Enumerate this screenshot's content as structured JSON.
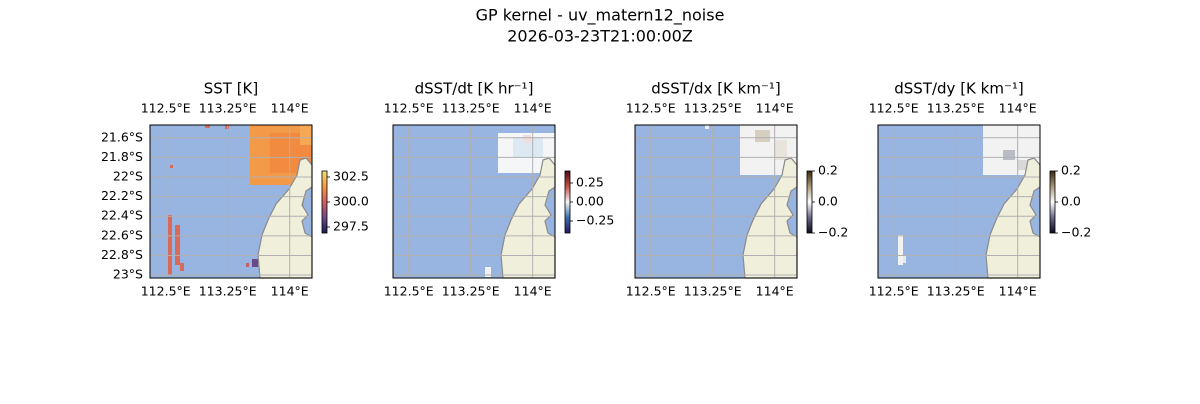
{
  "figure": {
    "title": "GP kernel - uv_matern12_noise",
    "subtitle": "2026-03-23T21:00:00Z",
    "lon_range": [
      112.31,
      114.27
    ],
    "lat_range": [
      -21.47,
      -23.03
    ],
    "lon_ticks": [
      {
        "value": 112.5,
        "label": "112.5°E"
      },
      {
        "value": 113.25,
        "label": "113.25°E"
      },
      {
        "value": 114,
        "label": "114°E"
      }
    ],
    "lat_ticks": [
      {
        "value": -21.6,
        "label": "21.6°S"
      },
      {
        "value": -21.8,
        "label": "21.8°S"
      },
      {
        "value": -22,
        "label": "22°S"
      },
      {
        "value": -22.2,
        "label": "22.2°S"
      },
      {
        "value": -22.4,
        "label": "22.4°S"
      },
      {
        "value": -22.6,
        "label": "22.6°S"
      },
      {
        "value": -22.8,
        "label": "22.8°S"
      },
      {
        "value": -23,
        "label": "23°S"
      }
    ],
    "panels": [
      {
        "title": "SST [K]",
        "cmap": [
          "#1b1f4b",
          "#6a4a8a",
          "#d35d5d",
          "#f59a3e",
          "#f4e07a"
        ],
        "colorbar": {
          "lim": [
            296.9,
            303.1
          ],
          "ticks": [
            302.5,
            {
              "value": 300,
              "label": "300.0"
            },
            297.5
          ]
        }
      },
      {
        "title": "dSST/dt [K hr⁻¹]",
        "cmap": [
          "#2a1a5e",
          "#3a6fb0",
          "#f5f5f5",
          "#c8504a",
          "#4a0d14"
        ],
        "colorbar": {
          "lim": [
            -0.408,
            0.408
          ],
          "ticks": [
            0.25,
            {
              "value": 0,
              "label": "0.00"
            },
            {
              "value": -0.25,
              "label": "−0.25"
            }
          ]
        }
      },
      {
        "title": "dSST/dx [K km⁻¹]",
        "cmap": [
          "#0a0a1e",
          "#6a6a8a",
          "#ffffff",
          "#a8987a",
          "#3a2a10"
        ],
        "colorbar": {
          "lim": [
            -0.2,
            0.2
          ],
          "ticks": [
            0.2,
            {
              "value": 0,
              "label": "0.0"
            },
            {
              "value": -0.2,
              "label": "−0.2"
            }
          ]
        }
      },
      {
        "title": "dSST/dy [K km⁻¹]",
        "cmap": [
          "#0a0a1e",
          "#6a6a8a",
          "#ffffff",
          "#a8987a",
          "#3a2a10"
        ],
        "colorbar": {
          "lim": [
            -0.2,
            0.2
          ],
          "ticks": [
            0.2,
            {
              "value": 0,
              "label": "0.0"
            },
            {
              "value": -0.2,
              "label": "−0.2"
            }
          ]
        }
      }
    ]
  }
}
